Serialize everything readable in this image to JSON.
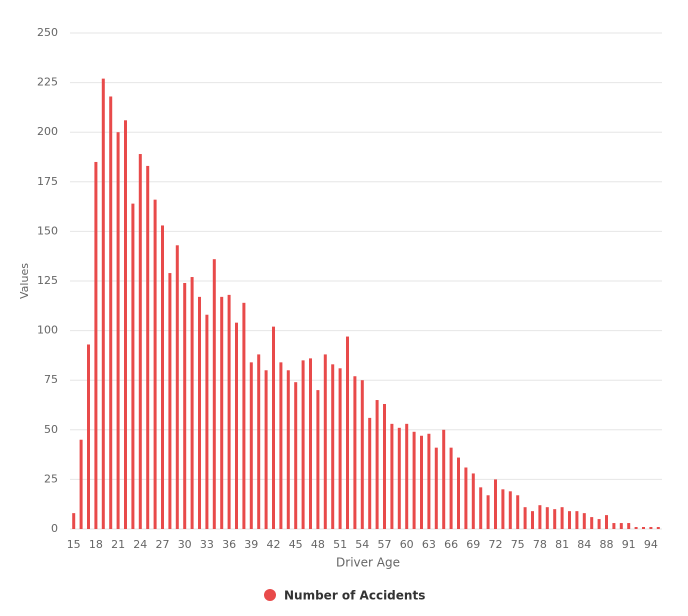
{
  "chart_data": {
    "type": "bar",
    "x_label": "Driver Age",
    "y_label": "Values",
    "categories": [
      "15",
      null,
      null,
      "18",
      null,
      null,
      "21",
      null,
      null,
      "24",
      null,
      null,
      "27",
      null,
      null,
      "30",
      null,
      null,
      "33",
      null,
      null,
      "36",
      null,
      null,
      "39",
      null,
      null,
      "42",
      null,
      null,
      "45",
      null,
      null,
      "48",
      null,
      null,
      "51",
      null,
      null,
      "54",
      null,
      null,
      "57",
      null,
      null,
      "60",
      null,
      null,
      "63",
      null,
      null,
      "66",
      null,
      null,
      "69",
      null,
      null,
      "72",
      null,
      null,
      "75",
      null,
      null,
      "78",
      null,
      null,
      "81",
      null,
      null,
      "84",
      null,
      null,
      "88",
      null,
      null,
      "91",
      null,
      null,
      "94",
      null
    ],
    "series": [
      {
        "name": "Number of Accidents",
        "color": "#e84a4a",
        "values": [
          8,
          45,
          93,
          185,
          227,
          218,
          200,
          206,
          164,
          189,
          183,
          166,
          153,
          129,
          143,
          124,
          127,
          117,
          108,
          136,
          117,
          118,
          104,
          114,
          84,
          88,
          80,
          102,
          84,
          80,
          74,
          85,
          86,
          70,
          88,
          83,
          81,
          97,
          77,
          75,
          56,
          65,
          63,
          53,
          51,
          53,
          49,
          47,
          48,
          41,
          50,
          41,
          36,
          31,
          28,
          21,
          17,
          25,
          20,
          19,
          17,
          11,
          9,
          12,
          11,
          10,
          11,
          9,
          9,
          8,
          6,
          5,
          7,
          3,
          3,
          3,
          1,
          1,
          1,
          1
        ]
      }
    ],
    "ylim": [
      0,
      250
    ],
    "yticks": [
      0,
      25,
      50,
      75,
      100,
      125,
      150,
      175,
      200,
      225,
      250
    ],
    "grid": true,
    "legend": "bottom"
  }
}
